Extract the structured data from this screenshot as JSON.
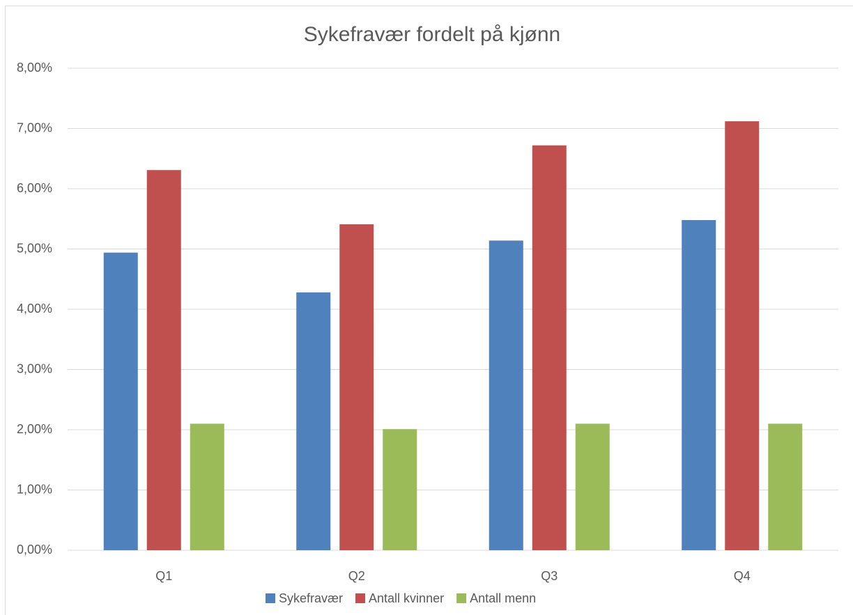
{
  "chart_data": {
    "type": "bar",
    "title": "Sykefravær fordelt på kjønn",
    "categories": [
      "Q1",
      "Q2",
      "Q3",
      "Q4"
    ],
    "series": [
      {
        "name": "Sykefravær",
        "color": "#4f81bd",
        "values": [
          4.94,
          4.28,
          5.14,
          5.48
        ]
      },
      {
        "name": "Antall kvinner",
        "color": "#c0504d",
        "values": [
          6.31,
          5.41,
          6.72,
          7.12
        ]
      },
      {
        "name": "Antall menn",
        "color": "#9bbb59",
        "values": [
          2.1,
          2.01,
          2.1,
          2.1
        ]
      }
    ],
    "ylim": [
      0,
      8
    ],
    "yticks": [
      {
        "value": 0,
        "label": "0,00%"
      },
      {
        "value": 1,
        "label": "1,00%"
      },
      {
        "value": 2,
        "label": "2,00%"
      },
      {
        "value": 3,
        "label": "3,00%"
      },
      {
        "value": 4,
        "label": "4,00%"
      },
      {
        "value": 5,
        "label": "5,00%"
      },
      {
        "value": 6,
        "label": "6,00%"
      },
      {
        "value": 7,
        "label": "7,00%"
      },
      {
        "value": 8,
        "label": "8,00%"
      }
    ],
    "grid": true,
    "legend": "bottom"
  }
}
